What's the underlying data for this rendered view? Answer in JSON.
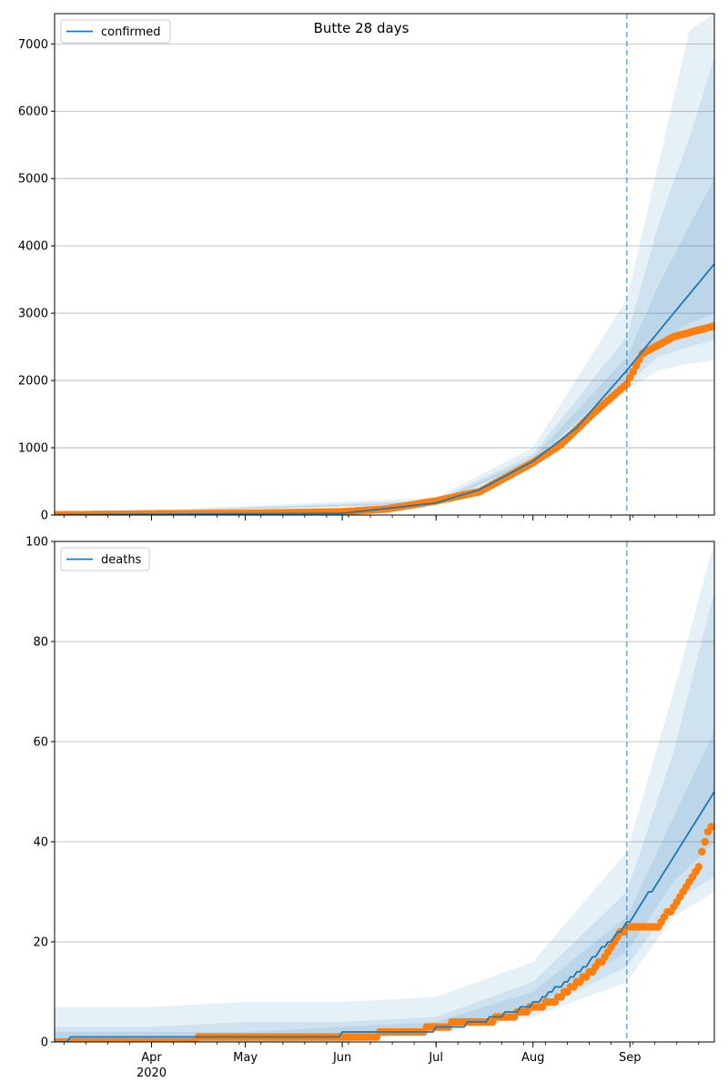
{
  "title": "Butte 28 days",
  "colors": {
    "model": "#1f77b4",
    "observed": "#ff7f0e",
    "band": "#1f77b4",
    "grid": "#b0b0b0"
  },
  "x_axis": {
    "range": [
      "2020-03-01",
      "2020-09-28"
    ],
    "month_ticks": [
      {
        "label": "Apr",
        "sublabel": "2020",
        "date": "2020-04-01"
      },
      {
        "label": "May",
        "sublabel": "",
        "date": "2020-05-01"
      },
      {
        "label": "Jun",
        "sublabel": "",
        "date": "2020-06-01"
      },
      {
        "label": "Jul",
        "sublabel": "",
        "date": "2020-07-01"
      },
      {
        "label": "Aug",
        "sublabel": "",
        "date": "2020-08-01"
      },
      {
        "label": "Sep",
        "sublabel": "",
        "date": "2020-09-01"
      }
    ],
    "forecast_date": "2020-08-31"
  },
  "chart_data": [
    {
      "type": "line",
      "legend": "confirmed",
      "legend_position": "top-left",
      "grid": "y",
      "ylim": [
        0,
        7450
      ],
      "yticks": [
        0,
        1000,
        2000,
        3000,
        4000,
        5000,
        6000,
        7000
      ],
      "model": {
        "x": [
          "2020-03-01",
          "2020-06-01",
          "2020-07-01",
          "2020-07-15",
          "2020-08-01",
          "2020-08-15",
          "2020-08-31",
          "2020-09-15",
          "2020-09-28"
        ],
        "y": [
          5,
          25,
          180,
          380,
          800,
          1300,
          2150,
          3000,
          3730
        ]
      },
      "bands": [
        {
          "x": [
            "2020-03-01",
            "2020-07-01",
            "2020-08-01",
            "2020-08-31",
            "2020-09-10",
            "2020-09-20",
            "2020-09-28"
          ],
          "lower": [
            0,
            160,
            700,
            1850,
            2150,
            2250,
            2300
          ],
          "upper": [
            10,
            260,
            1000,
            3200,
            5200,
            7200,
            7450
          ]
        },
        {
          "x": [
            "2020-03-01",
            "2020-07-01",
            "2020-08-01",
            "2020-08-31",
            "2020-09-10",
            "2020-09-20",
            "2020-09-28"
          ],
          "lower": [
            0,
            170,
            760,
            1950,
            2350,
            2500,
            2600
          ],
          "upper": [
            8,
            220,
            900,
            2650,
            4300,
            5600,
            6800
          ]
        },
        {
          "x": [
            "2020-03-01",
            "2020-07-01",
            "2020-08-01",
            "2020-08-31",
            "2020-09-10",
            "2020-09-20",
            "2020-09-28"
          ],
          "lower": [
            2,
            180,
            800,
            2050,
            2550,
            2850,
            3000
          ],
          "upper": [
            6,
            200,
            850,
            2350,
            3400,
            4300,
            5000
          ]
        }
      ],
      "observed": {
        "x": [
          "2020-03-01",
          "2020-04-01",
          "2020-05-01",
          "2020-06-01",
          "2020-06-15",
          "2020-07-01",
          "2020-07-15",
          "2020-08-01",
          "2020-08-10",
          "2020-08-20",
          "2020-08-31",
          "2020-09-05",
          "2020-09-15",
          "2020-09-28"
        ],
        "y": [
          3,
          18,
          25,
          50,
          90,
          210,
          350,
          780,
          1050,
          1500,
          1950,
          2400,
          2650,
          2810
        ]
      }
    },
    {
      "type": "line",
      "legend": "deaths",
      "legend_position": "top-left",
      "grid": "y",
      "ylim": [
        0,
        100
      ],
      "yticks": [
        0,
        20,
        40,
        60,
        80,
        100
      ],
      "model": {
        "x": [
          "2020-03-01",
          "2020-03-06",
          "2020-06-01",
          "2020-07-01",
          "2020-07-15",
          "2020-08-01",
          "2020-08-15",
          "2020-08-31",
          "2020-09-15",
          "2020-09-28"
        ],
        "y": [
          0,
          1,
          2,
          3,
          4.5,
          8,
          14,
          24,
          37,
          50
        ]
      },
      "bands": [
        {
          "x": [
            "2020-03-01",
            "2020-04-01",
            "2020-05-01",
            "2020-06-01",
            "2020-07-01",
            "2020-08-01",
            "2020-08-31",
            "2020-09-15",
            "2020-09-28"
          ],
          "lower": [
            0,
            0,
            0,
            0,
            2,
            5,
            12,
            25,
            30
          ],
          "upper": [
            7,
            7,
            8,
            8,
            9,
            16,
            38,
            70,
            100
          ]
        },
        {
          "x": [
            "2020-03-01",
            "2020-04-01",
            "2020-05-01",
            "2020-06-01",
            "2020-07-01",
            "2020-08-01",
            "2020-08-31",
            "2020-09-15",
            "2020-09-28"
          ],
          "lower": [
            0,
            0,
            0,
            0,
            2.5,
            6,
            15,
            28,
            33
          ],
          "upper": [
            3,
            3,
            4,
            4,
            5,
            12,
            30,
            58,
            90
          ]
        },
        {
          "x": [
            "2020-03-01",
            "2020-04-01",
            "2020-05-01",
            "2020-06-01",
            "2020-07-01",
            "2020-08-01",
            "2020-08-31",
            "2020-09-15",
            "2020-09-28"
          ],
          "lower": [
            0,
            0,
            0,
            0.5,
            2.8,
            7,
            18,
            32,
            40
          ],
          "upper": [
            2,
            2,
            2,
            3,
            4,
            10,
            25,
            45,
            62
          ]
        }
      ],
      "observed": {
        "x": [
          "2020-03-01",
          "2020-06-01",
          "2020-06-25",
          "2020-07-01",
          "2020-07-10",
          "2020-07-15",
          "2020-07-25",
          "2020-08-01",
          "2020-08-08",
          "2020-08-16",
          "2020-08-20",
          "2020-08-24",
          "2020-08-28",
          "2020-08-31",
          "2020-09-10",
          "2020-09-16",
          "2020-09-19",
          "2020-09-21",
          "2020-09-23",
          "2020-09-25",
          "2020-09-27"
        ],
        "y": [
          0,
          1,
          2,
          3,
          4,
          4,
          5,
          7,
          8,
          12,
          14,
          17,
          21,
          23,
          23,
          28,
          31,
          33,
          35,
          40,
          43
        ]
      }
    }
  ]
}
